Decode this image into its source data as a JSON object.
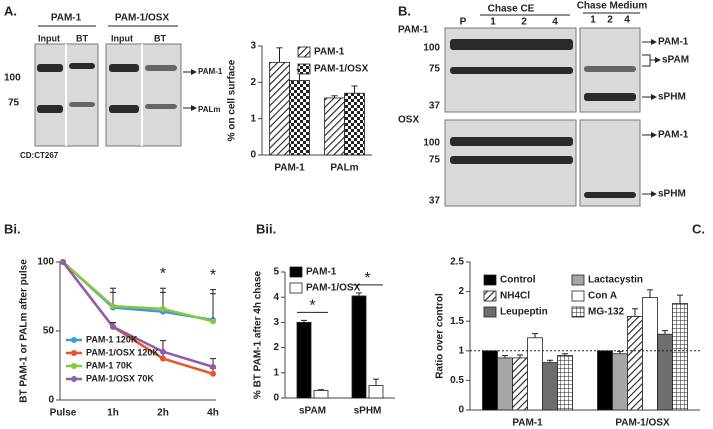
{
  "panel_labels": [
    "A.",
    "B.",
    "Bi.",
    "Bii.",
    "C."
  ],
  "blot_a": {
    "groups": [
      {
        "title": "PAM-1",
        "lanes": [
          "Input",
          "BT"
        ]
      },
      {
        "title": "PAM-1/OSX",
        "lanes": [
          "Input",
          "BT"
        ]
      }
    ],
    "markers": [
      "100",
      "75"
    ],
    "bands": [
      "PAM-1",
      "PALm"
    ],
    "antibody": "CD:CT267"
  },
  "blot_b": {
    "sections": [
      "Chase CE",
      "Chase Medium"
    ],
    "lanes": [
      "P",
      "1",
      "2",
      "4",
      "1",
      "2",
      "4"
    ],
    "rows": [
      {
        "label": "PAM-1",
        "markers": [
          "100",
          "75",
          "37"
        ],
        "bands": [
          "PAM-1",
          "sPAM",
          "sPHM"
        ]
      },
      {
        "label": "OSX",
        "markers": [
          "100",
          "75",
          "37"
        ],
        "bands": [
          "PAM-1",
          "sPHM"
        ]
      }
    ]
  },
  "chart_data": [
    {
      "type": "bar",
      "ylabel": "% on cell surface",
      "categories": [
        "PAM-1",
        "PALm"
      ],
      "series": [
        {
          "name": "PAM-1",
          "color": "#222222",
          "pattern": "diagonal",
          "values": [
            2.55,
            1.57
          ],
          "errors": [
            0.4,
            0.06
          ]
        },
        {
          "name": "PAM-1/OSX",
          "color": "#222222",
          "pattern": "checker",
          "values": [
            2.05,
            1.7
          ],
          "errors": [
            0.3,
            0.2
          ]
        }
      ],
      "ylim": [
        0,
        3
      ],
      "yticks": [
        0,
        1,
        2,
        3
      ],
      "legend": "upper right"
    },
    {
      "type": "line",
      "ylabel": "BT PAM-1 or PALm after pulse",
      "categories": [
        "Pulse",
        "1h",
        "2h",
        "4h"
      ],
      "series": [
        {
          "name": "PAM-1 120K",
          "color": "#3a9ad9",
          "values": [
            100,
            67,
            64,
            58
          ],
          "errors": [
            null,
            14,
            17,
            22
          ]
        },
        {
          "name": "PAM-1/OSX 120K",
          "color": "#e8532c",
          "values": [
            100,
            53,
            30,
            19
          ],
          "errors": [
            null,
            3,
            5,
            4
          ]
        },
        {
          "name": "PAM-1 70K",
          "color": "#8cc63e",
          "values": [
            100,
            68,
            66,
            57
          ],
          "errors": [
            null,
            10,
            12,
            20
          ]
        },
        {
          "name": "PAM-1/OSX 70K",
          "color": "#8e5fa8",
          "values": [
            100,
            53,
            35,
            24
          ],
          "errors": [
            null,
            3,
            8,
            6
          ]
        }
      ],
      "annotations": [
        null,
        null,
        "*",
        "*"
      ],
      "ylim": [
        0,
        100
      ],
      "yticks": [
        0,
        50,
        100
      ],
      "legend": "lower left"
    },
    {
      "type": "bar",
      "ylabel": "% BT PAM-1 after 4h chase",
      "categories": [
        "sPAM",
        "sPHM"
      ],
      "series": [
        {
          "name": "PAM-1",
          "color": "#000000",
          "values": [
            3.0,
            4.05
          ],
          "errors": [
            0.08,
            0.12
          ]
        },
        {
          "name": "PAM-1/OSX",
          "color": "#ffffff",
          "values": [
            0.3,
            0.5
          ],
          "errors": [
            0.03,
            0.25
          ]
        }
      ],
      "annotations": [
        "*",
        "*"
      ],
      "ylim": [
        0,
        5
      ],
      "yticks": [
        0,
        1,
        2,
        3,
        4,
        5
      ],
      "legend": "upper left"
    },
    {
      "type": "bar",
      "ylabel": "Ratio over control",
      "categories": [
        "PAM-1",
        "PAM-1/OSX"
      ],
      "series": [
        {
          "name": "Control",
          "color": "#000000",
          "values": [
            1.0,
            1.0
          ],
          "errors": [
            null,
            null
          ]
        },
        {
          "name": "Lactacystin",
          "color": "#a6a6a6",
          "values": [
            0.88,
            0.95
          ],
          "errors": [
            0.04,
            0.04
          ]
        },
        {
          "name": "NH4Cl",
          "color": "#222222",
          "pattern": "diagonal",
          "values": [
            0.88,
            1.58
          ],
          "errors": [
            0.05,
            0.13
          ]
        },
        {
          "name": "Con A",
          "color": "#ffffff",
          "values": [
            1.22,
            1.9
          ],
          "errors": [
            0.07,
            0.13
          ]
        },
        {
          "name": "Leupeptin",
          "color": "#6e6e6e",
          "values": [
            0.8,
            1.28
          ],
          "errors": [
            0.04,
            0.06
          ]
        },
        {
          "name": "MG-132",
          "color": "#222222",
          "pattern": "grid",
          "values": [
            0.92,
            1.8
          ],
          "errors": [
            0.03,
            0.14
          ]
        }
      ],
      "hline": 1,
      "ylim": [
        0,
        2.5
      ],
      "yticks": [
        0,
        0.5,
        1,
        1.5,
        2,
        2.5
      ],
      "legend": "upper left"
    }
  ]
}
